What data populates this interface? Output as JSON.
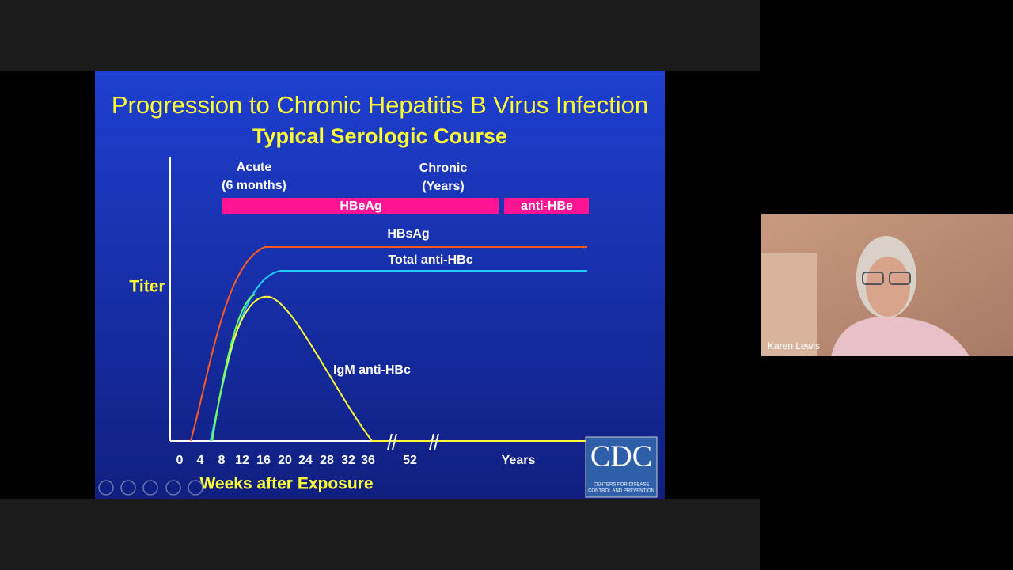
{
  "slide": {
    "title": "Progression to Chronic Hepatitis B Virus Infection",
    "subtitle": "Typical Serologic Course",
    "y_label": "Titer",
    "phases": [
      {
        "lines": [
          "Acute",
          "(6 months)"
        ]
      },
      {
        "lines": [
          "Chronic",
          "(Years)"
        ]
      }
    ],
    "bars": [
      "HBeAg",
      "anti-HBe"
    ],
    "curves": [
      "HBsAg",
      "Total anti-HBc",
      "IgM anti-HBc"
    ],
    "x_ticks": [
      "0",
      "4",
      "8",
      "12",
      "16",
      "20",
      "24",
      "28",
      "32",
      "36",
      "52"
    ],
    "x_unit": "Years",
    "x_label": "Weeks after Exposure",
    "logo": {
      "text": "CDC",
      "lines": [
        "CENTERS FOR DISEASE",
        "CONTROL AND PREVENTION"
      ]
    }
  },
  "participant": {
    "name": "Karen Lewis"
  }
}
